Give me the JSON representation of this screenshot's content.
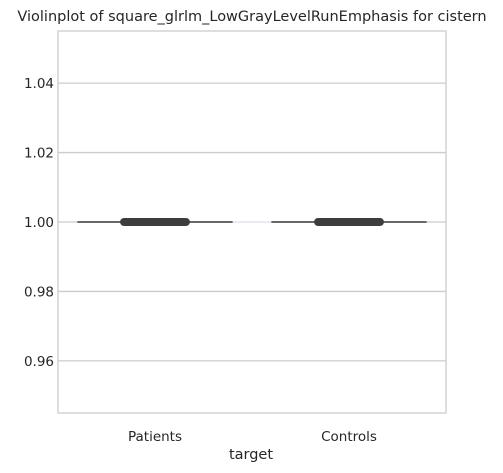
{
  "chart_data": {
    "type": "violin",
    "title": "Violinplot of square_glrlm_LowGrayLevelRunEmphasis for cistern",
    "xlabel": "target",
    "ylabel": "",
    "categories": [
      "Patients",
      "Controls"
    ],
    "series": [
      {
        "category": "Patients",
        "values": [
          1.0,
          1.0,
          1.0,
          1.0,
          1.0,
          1.0,
          1.0,
          1.0,
          1.0,
          1.0
        ],
        "median": 1.0,
        "q1": 1.0,
        "q3": 1.0
      },
      {
        "category": "Controls",
        "values": [
          1.0,
          1.0,
          1.0,
          1.0,
          1.0,
          1.0,
          1.0,
          1.0
        ],
        "median": 1.0,
        "q1": 1.0,
        "q3": 1.0
      }
    ],
    "ylim": [
      0.945,
      1.055
    ],
    "yticks": [
      0.96,
      0.98,
      1.0,
      1.02,
      1.04
    ],
    "ytick_labels": [
      "0.96",
      "0.98",
      "1.00",
      "1.02",
      "1.04"
    ],
    "grid": "y",
    "colors": {
      "background": "#ffffff",
      "grid": "#cccccc",
      "spine": "#cccccc",
      "violin_line": "#555555",
      "box": "#3d3d3d",
      "gap": "#eaeaf2"
    }
  }
}
